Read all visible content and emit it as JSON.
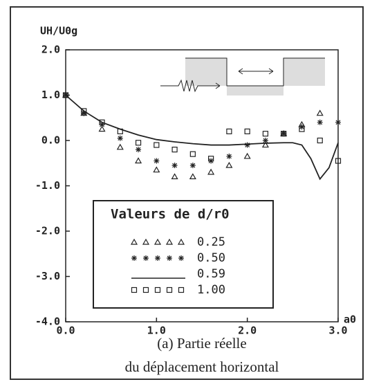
{
  "chart_data": {
    "type": "line",
    "y_label": "UH/U0g",
    "x_label": "a0",
    "xlim": [
      0,
      3
    ],
    "ylim": [
      -4,
      2
    ],
    "xticks": [
      {
        "value": 0,
        "label": "0.0"
      },
      {
        "value": 1,
        "label": "1.0"
      },
      {
        "value": 2,
        "label": "2.0"
      },
      {
        "value": 3,
        "label": "3.0"
      }
    ],
    "yticks": [
      {
        "value": 2,
        "label": "2.0"
      },
      {
        "value": 1,
        "label": "1.0"
      },
      {
        "value": 0,
        "label": "0.0"
      },
      {
        "value": -1,
        "label": "-1.0"
      },
      {
        "value": -2,
        "label": "-2.0"
      },
      {
        "value": -3,
        "label": "-3.0"
      },
      {
        "value": -4,
        "label": "-4.0"
      }
    ],
    "legend_title": "Valeurs de d/r0",
    "legend_position": "lower center",
    "caption": [
      "(a) Partie réelle",
      "du déplacement horizontal"
    ],
    "series": [
      {
        "name": "0.25",
        "marker": "triangle",
        "color": "#222222",
        "x": [
          0,
          0.2,
          0.4,
          0.6,
          0.8,
          1.0,
          1.2,
          1.4,
          1.6,
          1.8,
          2.0,
          2.2,
          2.4,
          2.6,
          2.8
        ],
        "values": [
          1.0,
          0.6,
          0.25,
          -0.15,
          -0.45,
          -0.65,
          -0.8,
          -0.8,
          -0.7,
          -0.55,
          -0.35,
          -0.1,
          0.15,
          0.35,
          0.6
        ]
      },
      {
        "name": "0.50",
        "marker": "star",
        "color": "#222222",
        "x": [
          0,
          0.2,
          0.4,
          0.6,
          0.8,
          1.0,
          1.2,
          1.4,
          1.6,
          1.8,
          2.0,
          2.2,
          2.4,
          2.6,
          2.8,
          3.0
        ],
        "values": [
          1.0,
          0.6,
          0.35,
          0.05,
          -0.2,
          -0.45,
          -0.55,
          -0.55,
          -0.45,
          -0.35,
          -0.1,
          0.0,
          0.15,
          0.3,
          0.4,
          0.4
        ]
      },
      {
        "name": "0.59",
        "marker": "line",
        "color": "#222222",
        "x": [
          0,
          0.2,
          0.4,
          0.6,
          0.8,
          1.0,
          1.2,
          1.4,
          1.6,
          1.8,
          2.0,
          2.2,
          2.4,
          2.5,
          2.6,
          2.7,
          2.8,
          2.9,
          3.0
        ],
        "values": [
          1.0,
          0.65,
          0.4,
          0.25,
          0.12,
          0.02,
          -0.03,
          -0.07,
          -0.1,
          -0.1,
          -0.08,
          -0.06,
          -0.05,
          -0.05,
          -0.1,
          -0.4,
          -0.85,
          -0.6,
          -0.05
        ]
      },
      {
        "name": "1.00",
        "marker": "square",
        "color": "#222222",
        "x": [
          0,
          0.2,
          0.4,
          0.6,
          0.8,
          1.0,
          1.2,
          1.4,
          1.6,
          1.8,
          2.0,
          2.2,
          2.4,
          2.6,
          2.8,
          3.0
        ],
        "values": [
          1.0,
          0.65,
          0.4,
          0.2,
          -0.05,
          -0.1,
          -0.2,
          -0.3,
          -0.4,
          0.2,
          0.2,
          0.15,
          0.15,
          0.25,
          0.0,
          -0.45
        ]
      }
    ]
  }
}
